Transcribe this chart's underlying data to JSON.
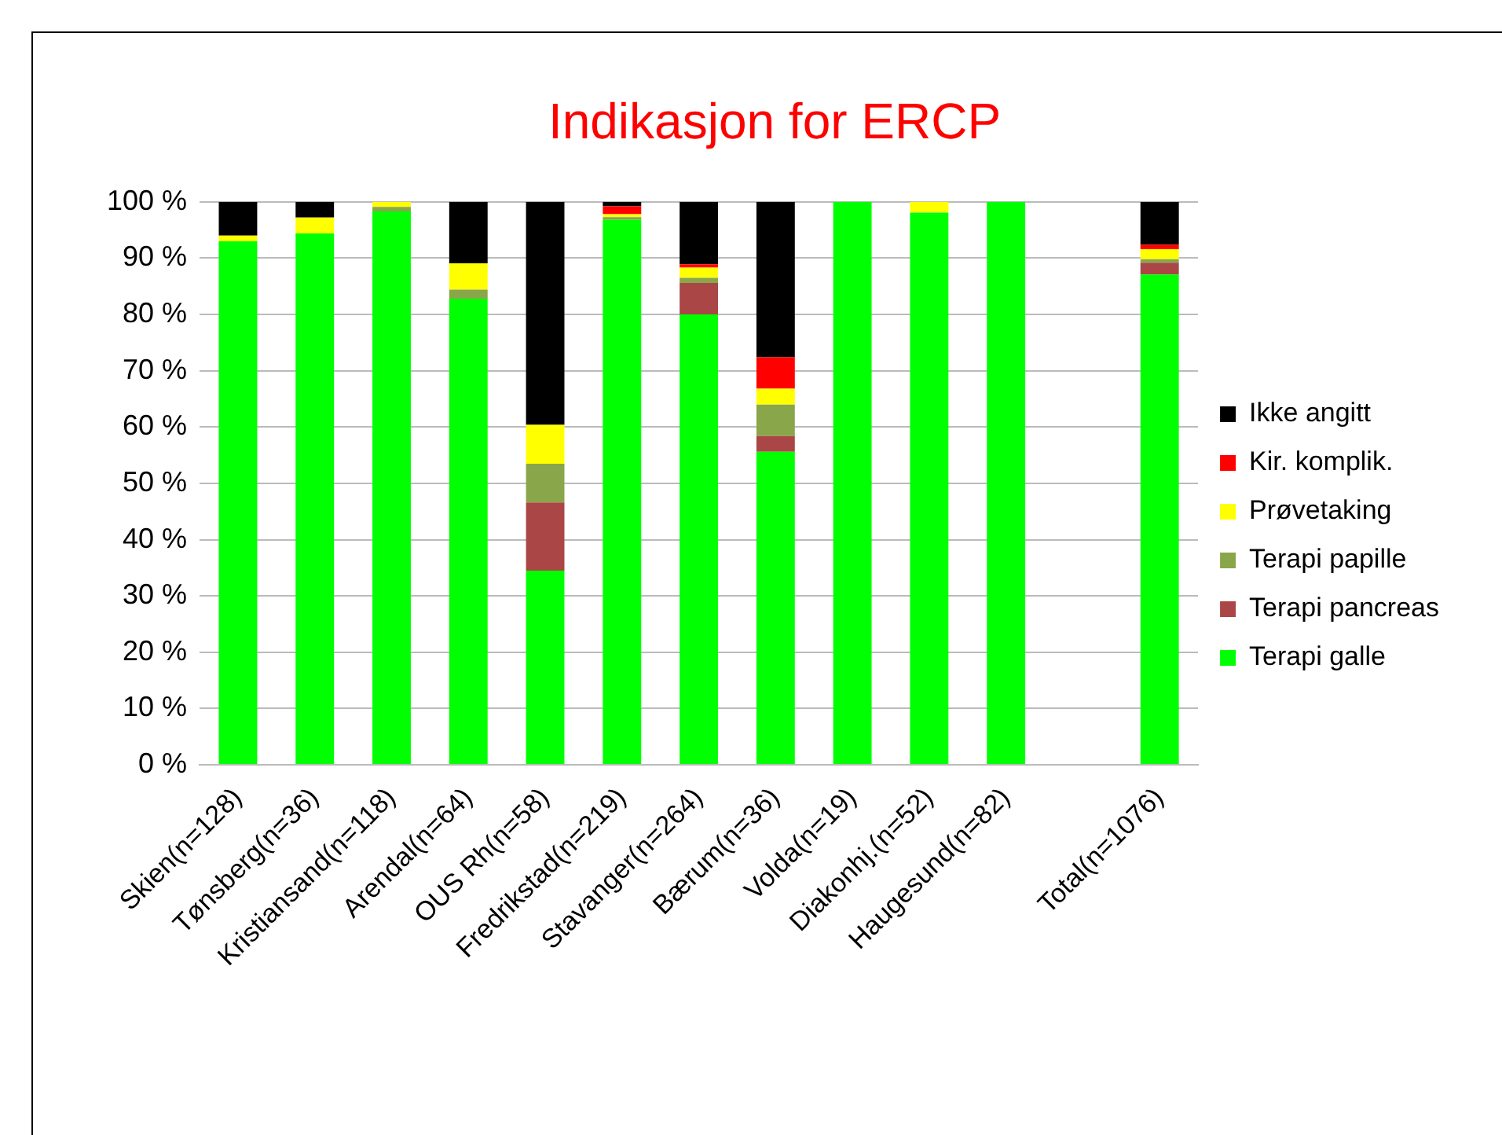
{
  "chart_data": {
    "type": "bar",
    "title": "Indikasjon for ERCP",
    "stacked": true,
    "grid": "y",
    "legend": "right",
    "categories": [
      "Skien(n=128)",
      "Tønsberg(n=36)",
      "Kristiansand(n=118)",
      "Arendal(n=64)",
      "OUS Rh(n=58)",
      "Fredrikstad(n=219)",
      "Stavanger(n=264)",
      "Bærum(n=36)",
      "Volda(n=19)",
      "Diakonhj.(n=52)",
      "Haugesund(n=82)",
      null,
      "Total(n=1076)"
    ],
    "ylim": [
      0,
      100
    ],
    "yticks": [
      {
        "value": 0,
        "label": "0 %"
      },
      {
        "value": 10,
        "label": "10 %"
      },
      {
        "value": 20,
        "label": "20 %"
      },
      {
        "value": 30,
        "label": "30 %"
      },
      {
        "value": 40,
        "label": "40 %"
      },
      {
        "value": 50,
        "label": "50 %"
      },
      {
        "value": 60,
        "label": "60 %"
      },
      {
        "value": 70,
        "label": "70 %"
      },
      {
        "value": 80,
        "label": "80 %"
      },
      {
        "value": 90,
        "label": "90 %"
      },
      {
        "value": 100,
        "label": "100 %"
      }
    ],
    "series": [
      {
        "name": "Terapi galle",
        "color": "#00ff00",
        "values": [
          93,
          94.4,
          98.3,
          82.8,
          34.5,
          96.8,
          80,
          55.6,
          100,
          98.1,
          100,
          null,
          87.1
        ]
      },
      {
        "name": "Terapi pancreas",
        "color": "#aa4646",
        "values": [
          0,
          0,
          0,
          0,
          12.1,
          0,
          5.6,
          2.8,
          0,
          0,
          0,
          null,
          2.1
        ]
      },
      {
        "name": "Terapi papille",
        "color": "#8aa64a",
        "values": [
          0,
          0,
          0.8,
          1.6,
          6.9,
          0.5,
          0.9,
          5.6,
          0,
          0,
          0,
          null,
          0.6
        ]
      },
      {
        "name": "Prøvetaking",
        "color": "#ffff00",
        "values": [
          1,
          2.8,
          0.9,
          4.7,
          6.9,
          0.5,
          1.8,
          2.8,
          0,
          1.9,
          0,
          null,
          1.8
        ]
      },
      {
        "name": "Kir. komplik.",
        "color": "#ff0000",
        "values": [
          0,
          0,
          0,
          0,
          0,
          1.4,
          0.6,
          5.6,
          0,
          0,
          0,
          null,
          0.8
        ]
      },
      {
        "name": "Ikke angitt",
        "color": "#000000",
        "values": [
          6,
          2.8,
          0,
          10.9,
          39.6,
          0.8,
          11.1,
          27.6,
          0,
          0,
          0,
          null,
          7.6
        ]
      }
    ]
  }
}
